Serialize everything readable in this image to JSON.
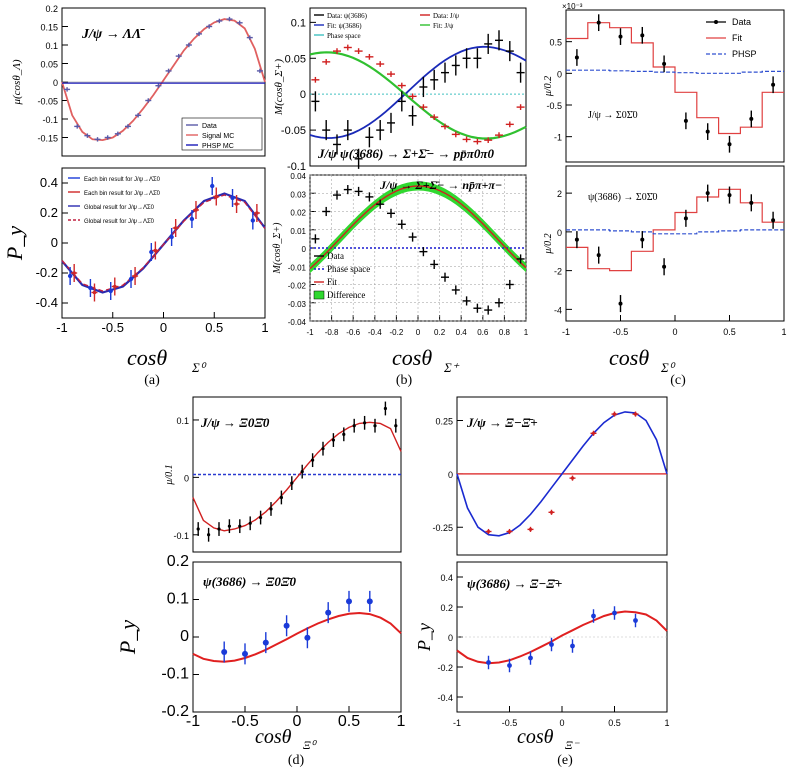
{
  "figure_labels": [
    "(a)",
    "(b)",
    "(c)",
    "(d)",
    "(e)"
  ],
  "chart_data": [
    {
      "id": "a_top",
      "type": "line",
      "title": "J/ψ → ΛΛ̄",
      "xlabel": "",
      "ylabel": "μ(cosθ_Λ)",
      "xlim": [
        -1,
        1
      ],
      "ylim": [
        -0.2,
        0.2
      ],
      "yticks": [
        "-0.15",
        "-0.1",
        "-0.05",
        "0",
        "0.05",
        "0.1",
        "0.15",
        "0.2"
      ],
      "legend": [
        "Data",
        "Signal MC",
        "PHSP MC"
      ],
      "series": [
        {
          "name": "Data",
          "x": [
            -0.95,
            -0.85,
            -0.75,
            -0.65,
            -0.55,
            -0.45,
            -0.35,
            -0.25,
            -0.15,
            -0.05,
            0.05,
            0.15,
            0.25,
            0.35,
            0.45,
            0.55,
            0.65,
            0.75,
            0.85,
            0.95
          ],
          "y": [
            -0.02,
            -0.12,
            -0.145,
            -0.155,
            -0.15,
            -0.14,
            -0.12,
            -0.09,
            -0.05,
            -0.01,
            0.03,
            0.07,
            0.1,
            0.13,
            0.15,
            0.165,
            0.17,
            0.16,
            0.12,
            0.03
          ]
        },
        {
          "name": "Signal MC",
          "x": [
            -1,
            -0.9,
            -0.8,
            -0.7,
            -0.6,
            -0.5,
            -0.4,
            -0.3,
            -0.2,
            -0.1,
            0,
            0.1,
            0.2,
            0.3,
            0.4,
            0.5,
            0.6,
            0.7,
            0.8,
            0.9,
            1
          ],
          "y": [
            0,
            -0.09,
            -0.135,
            -0.155,
            -0.157,
            -0.15,
            -0.132,
            -0.105,
            -0.072,
            -0.035,
            0.005,
            0.045,
            0.085,
            0.117,
            0.143,
            0.161,
            0.17,
            0.166,
            0.145,
            0.09,
            0
          ]
        },
        {
          "name": "PHSP MC",
          "x": [
            -1,
            1
          ],
          "y": [
            -0.003,
            -0.003
          ]
        }
      ]
    },
    {
      "id": "a_bottom",
      "type": "scatter",
      "xlabel": "cosθ_Σ0",
      "ylabel": "P_y",
      "xlim": [
        -1,
        1
      ],
      "ylim": [
        -0.5,
        0.5
      ],
      "xticks": [
        "-1",
        "-0.5",
        "0",
        "0.5",
        "1"
      ],
      "yticks": [
        "-0.4",
        "-0.2",
        "0",
        "0.2",
        "0.4"
      ],
      "legend": [
        "Each bin result for J/ψ→Λ̄Σ0",
        "Each bin result for J/ψ→ΛΣ̄0",
        "Global result for J/ψ→Λ̄Σ0",
        "Global result for J/ψ→ΛΣ̄0"
      ],
      "series": [
        {
          "name": "Each bin result for J/ψ→Λ̄Σ0",
          "x": [
            -0.9,
            -0.7,
            -0.5,
            -0.3,
            -0.1,
            0.1,
            0.3,
            0.5,
            0.7,
            0.9
          ],
          "y": [
            -0.22,
            -0.3,
            -0.32,
            -0.24,
            -0.06,
            0.04,
            0.16,
            0.38,
            0.3,
            0.15
          ]
        },
        {
          "name": "Each bin result for J/ψ→ΛΣ̄0",
          "x": [
            -0.9,
            -0.7,
            -0.5,
            -0.3,
            -0.1,
            0.1,
            0.3,
            0.5,
            0.7,
            0.9
          ],
          "y": [
            -0.2,
            -0.33,
            -0.29,
            -0.22,
            -0.05,
            0.1,
            0.22,
            0.31,
            0.26,
            0.2
          ]
        },
        {
          "name": "Global result",
          "x": [
            -1,
            -0.8,
            -0.6,
            -0.4,
            -0.2,
            0,
            0.2,
            0.4,
            0.6,
            0.8,
            1
          ],
          "y": [
            -0.12,
            -0.28,
            -0.33,
            -0.29,
            -0.17,
            -0.01,
            0.15,
            0.28,
            0.33,
            0.28,
            0.1
          ]
        }
      ]
    },
    {
      "id": "b_top",
      "type": "line",
      "title": "J/ψ ψ(3686) → Σ+Σ̄− → pp̄π0π0",
      "ylabel": "M(cosθ_Σ+)",
      "xlim": [
        -1,
        1
      ],
      "ylim": [
        -0.1,
        0.12
      ],
      "yticks": [
        "-0.1",
        "-0.05",
        "0",
        "0.05",
        "0.1"
      ],
      "legend": [
        "Data: ψ(3686)",
        "Data: J/ψ",
        "Fit: ψ(3686)",
        "Fit: J/ψ",
        "Phase space"
      ],
      "series": [
        {
          "name": "Data: ψ(3686)",
          "x": [
            -0.95,
            -0.85,
            -0.75,
            -0.65,
            -0.55,
            -0.45,
            -0.35,
            -0.25,
            -0.15,
            -0.05,
            0.05,
            0.15,
            0.25,
            0.35,
            0.45,
            0.55,
            0.65,
            0.75,
            0.85,
            0.95
          ],
          "y": [
            -0.01,
            -0.05,
            -0.07,
            -0.05,
            -0.09,
            -0.06,
            -0.05,
            -0.04,
            -0.01,
            -0.03,
            0.01,
            0.02,
            0.03,
            0.04,
            0.05,
            0.05,
            0.07,
            0.075,
            0.06,
            0.03
          ]
        },
        {
          "name": "Data: J/ψ",
          "x": [
            -0.95,
            -0.85,
            -0.75,
            -0.65,
            -0.55,
            -0.45,
            -0.35,
            -0.25,
            -0.15,
            -0.05,
            0.05,
            0.15,
            0.25,
            0.35,
            0.45,
            0.55,
            0.65,
            0.75,
            0.85,
            0.95
          ],
          "y": [
            0.02,
            0.045,
            0.06,
            0.065,
            0.06,
            0.052,
            0.042,
            0.028,
            0.012,
            -0.003,
            -0.018,
            -0.032,
            -0.045,
            -0.056,
            -0.063,
            -0.066,
            -0.064,
            -0.057,
            -0.042,
            -0.018
          ]
        }
      ]
    },
    {
      "id": "b_bottom",
      "type": "line",
      "title": "J/ψ → Σ+Σ̄− → np̄π+π−",
      "xlabel": "cosθ_Σ+",
      "ylabel": "M(cosθ_Σ+)",
      "xlim": [
        -1,
        1
      ],
      "ylim": [
        -0.04,
        0.04
      ],
      "xticks": [
        "-1",
        "-0.8",
        "-0.6",
        "-0.4",
        "-0.2",
        "0",
        "0.2",
        "0.4",
        "0.6",
        "0.8",
        "1"
      ],
      "yticks": [
        "-0.04",
        "-0.03",
        "-0.02",
        "-0.01",
        "0",
        "0.01",
        "0.02",
        "0.03",
        "0.04"
      ],
      "legend": [
        "Data",
        "Phase space",
        "Fit",
        "Difference"
      ],
      "series": [
        {
          "name": "Data",
          "x": [
            -0.95,
            -0.85,
            -0.75,
            -0.65,
            -0.55,
            -0.45,
            -0.35,
            -0.25,
            -0.15,
            -0.05,
            0.05,
            0.15,
            0.25,
            0.35,
            0.45,
            0.55,
            0.65,
            0.75,
            0.85,
            0.95
          ],
          "y": [
            0.005,
            0.02,
            0.029,
            0.032,
            0.031,
            0.028,
            0.024,
            0.019,
            0.013,
            0.006,
            -0.002,
            -0.009,
            -0.016,
            -0.023,
            -0.029,
            -0.033,
            -0.034,
            -0.03,
            -0.02,
            -0.006
          ]
        }
      ]
    },
    {
      "id": "c_top",
      "type": "bar",
      "title": "J/ψ → Σ0Σ̄0",
      "ylabel": "μ/0.2",
      "yexponent": "×10⁻³",
      "xlim": [
        -1,
        1
      ],
      "ylim": [
        -1.4,
        1.0
      ],
      "yticks": [
        "-1",
        "-0.5",
        "0",
        "0.5"
      ],
      "legend": [
        "Data",
        "Fit",
        "PHSP"
      ],
      "x": [
        -0.9,
        -0.7,
        -0.5,
        -0.3,
        -0.1,
        0.1,
        0.3,
        0.5,
        0.7,
        0.9
      ],
      "series": [
        {
          "name": "Data",
          "values": [
            0.25,
            0.8,
            0.58,
            0.6,
            0.15,
            -0.75,
            -0.92,
            -1.12,
            -0.72,
            -0.18
          ]
        },
        {
          "name": "Fit",
          "values": [
            0.55,
            0.8,
            0.72,
            0.48,
            0.1,
            -0.3,
            -0.7,
            -0.95,
            -0.85,
            -0.3
          ]
        },
        {
          "name": "PHSP",
          "values": [
            0.05,
            0.05,
            0.04,
            0.03,
            0.02,
            0.01,
            0.0,
            0.0,
            0.02,
            0.03
          ]
        }
      ]
    },
    {
      "id": "c_bottom",
      "type": "bar",
      "title": "ψ(3686) → Σ0Σ̄0",
      "xlabel": "cosθ_Σ0",
      "ylabel": "μ/0.2",
      "xlim": [
        -1,
        1
      ],
      "ylim": [
        -4.6,
        3.4
      ],
      "xticks": [
        "-1",
        "-0.5",
        "0",
        "0.5",
        "1"
      ],
      "yticks": [
        "-4",
        "-2",
        "0",
        "2"
      ],
      "x": [
        -0.9,
        -0.7,
        -0.5,
        -0.3,
        -0.1,
        0.1,
        0.3,
        0.5,
        0.7,
        0.9
      ],
      "series": [
        {
          "name": "Data",
          "values": [
            -0.4,
            -1.2,
            -3.7,
            -0.4,
            -1.8,
            0.7,
            2.0,
            1.9,
            1.5,
            0.6
          ]
        },
        {
          "name": "Fit",
          "values": [
            -0.8,
            -1.9,
            -2.0,
            -1.0,
            0.1,
            1.0,
            1.8,
            2.2,
            1.5,
            0.5
          ]
        },
        {
          "name": "PHSP",
          "values": [
            0.1,
            0.1,
            0.05,
            0.0,
            -0.1,
            -0.1,
            0.0,
            0.05,
            0.1,
            0.1
          ]
        }
      ]
    },
    {
      "id": "d_top",
      "type": "line",
      "title": "J/ψ → Ξ0Ξ̄0",
      "ylabel": "μ/0.1",
      "xlim": [
        -1,
        1
      ],
      "ylim": [
        -0.13,
        0.14
      ],
      "yticks": [
        "-0.1",
        "0",
        "0.1"
      ],
      "series": [
        {
          "name": "Data",
          "x": [
            -0.95,
            -0.85,
            -0.75,
            -0.65,
            -0.55,
            -0.45,
            -0.35,
            -0.25,
            -0.15,
            -0.05,
            0.05,
            0.15,
            0.25,
            0.35,
            0.45,
            0.55,
            0.65,
            0.75,
            0.85,
            0.95
          ],
          "y": [
            -0.09,
            -0.1,
            -0.09,
            -0.085,
            -0.085,
            -0.08,
            -0.07,
            -0.055,
            -0.035,
            -0.01,
            0.01,
            0.03,
            0.05,
            0.065,
            0.075,
            0.09,
            0.095,
            0.09,
            0.12,
            0.09
          ]
        },
        {
          "name": "Fit",
          "x": [
            -1,
            -0.9,
            -0.8,
            -0.7,
            -0.6,
            -0.5,
            -0.4,
            -0.3,
            -0.2,
            -0.1,
            0,
            0.1,
            0.2,
            0.3,
            0.4,
            0.5,
            0.6,
            0.7,
            0.8,
            0.9,
            1
          ],
          "y": [
            -0.035,
            -0.075,
            -0.088,
            -0.093,
            -0.09,
            -0.084,
            -0.074,
            -0.06,
            -0.042,
            -0.022,
            0,
            0.022,
            0.043,
            0.061,
            0.076,
            0.087,
            0.094,
            0.096,
            0.094,
            0.085,
            0.045
          ]
        },
        {
          "name": "PHSP",
          "x": [
            -1,
            1
          ],
          "y": [
            0.005,
            0.005
          ]
        }
      ]
    },
    {
      "id": "d_bottom",
      "type": "scatter",
      "title": "ψ(3686) → Ξ0Ξ̄0",
      "xlabel": "cosθ_Ξ0",
      "ylabel": "P_y",
      "xlim": [
        -1,
        1
      ],
      "ylim": [
        -0.2,
        0.2
      ],
      "xticks": [
        "-1",
        "-0.5",
        "0",
        "0.5",
        "1"
      ],
      "yticks": [
        "-0.2",
        "-0.1",
        "0",
        "0.1",
        "0.2"
      ],
      "series": [
        {
          "name": "Data",
          "x": [
            -0.7,
            -0.5,
            -0.3,
            -0.1,
            0.1,
            0.3,
            0.5,
            0.7
          ],
          "y": [
            -0.04,
            -0.045,
            -0.015,
            0.03,
            -0.002,
            0.065,
            0.095,
            0.095
          ]
        },
        {
          "name": "Fit",
          "x": [
            -1,
            -0.9,
            -0.8,
            -0.7,
            -0.6,
            -0.5,
            -0.4,
            -0.3,
            -0.2,
            -0.1,
            0,
            0.1,
            0.2,
            0.3,
            0.4,
            0.5,
            0.6,
            0.7,
            0.8,
            0.9,
            1
          ],
          "y": [
            -0.045,
            -0.058,
            -0.064,
            -0.066,
            -0.063,
            -0.056,
            -0.046,
            -0.034,
            -0.02,
            -0.006,
            0.009,
            0.023,
            0.036,
            0.047,
            0.056,
            0.062,
            0.064,
            0.061,
            0.052,
            0.036,
            0.01
          ]
        }
      ]
    },
    {
      "id": "e_top",
      "type": "scatter",
      "title": "J/ψ → Ξ−Ξ̄+",
      "xlim": [
        -1,
        1
      ],
      "ylim": [
        -0.38,
        0.36
      ],
      "yticks": [
        "-0.25",
        "0",
        "0.25"
      ],
      "series": [
        {
          "name": "Data",
          "x": [
            -0.7,
            -0.5,
            -0.3,
            -0.1,
            0.1,
            0.3,
            0.5,
            0.7
          ],
          "y": [
            -0.27,
            -0.27,
            -0.26,
            -0.18,
            -0.02,
            0.19,
            0.28,
            0.28
          ]
        },
        {
          "name": "Fit",
          "x": [
            -1,
            -0.9,
            -0.8,
            -0.7,
            -0.6,
            -0.5,
            -0.4,
            -0.3,
            -0.2,
            -0.1,
            0,
            0.1,
            0.2,
            0.3,
            0.4,
            0.5,
            0.6,
            0.7,
            0.8,
            0.9,
            1
          ],
          "y": [
            0,
            -0.16,
            -0.25,
            -0.285,
            -0.29,
            -0.275,
            -0.24,
            -0.19,
            -0.13,
            -0.065,
            0,
            0.065,
            0.13,
            0.19,
            0.24,
            0.275,
            0.29,
            0.285,
            0.25,
            0.16,
            0
          ]
        }
      ]
    },
    {
      "id": "e_bottom",
      "type": "scatter",
      "title": "ψ(3686) → Ξ−Ξ̄+",
      "xlabel": "cosθ_Ξ−",
      "ylabel": "P_y",
      "xlim": [
        -1,
        1
      ],
      "ylim": [
        -0.5,
        0.5
      ],
      "xticks": [
        "-1",
        "-0.5",
        "0",
        "0.5",
        "1"
      ],
      "yticks": [
        "-0.4",
        "-0.2",
        "0",
        "0.2",
        "0.4"
      ],
      "series": [
        {
          "name": "Data",
          "x": [
            -0.7,
            -0.5,
            -0.3,
            -0.1,
            0.1,
            0.3,
            0.5,
            0.7
          ],
          "y": [
            -0.17,
            -0.19,
            -0.14,
            -0.05,
            -0.06,
            0.14,
            0.16,
            0.11
          ]
        },
        {
          "name": "Fit",
          "x": [
            -1,
            -0.9,
            -0.8,
            -0.7,
            -0.6,
            -0.5,
            -0.4,
            -0.3,
            -0.2,
            -0.1,
            0,
            0.1,
            0.2,
            0.3,
            0.4,
            0.5,
            0.6,
            0.7,
            0.8,
            0.9,
            1
          ],
          "y": [
            -0.09,
            -0.14,
            -0.165,
            -0.175,
            -0.17,
            -0.155,
            -0.13,
            -0.1,
            -0.065,
            -0.03,
            0.01,
            0.045,
            0.08,
            0.11,
            0.14,
            0.16,
            0.17,
            0.165,
            0.15,
            0.11,
            0.04
          ]
        }
      ]
    }
  ]
}
